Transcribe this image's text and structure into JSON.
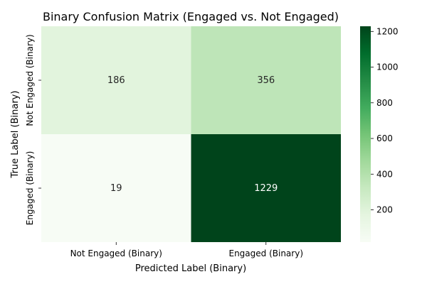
{
  "chart_data": {
    "type": "heatmap",
    "title": "Binary Confusion Matrix (Engaged vs. Not Engaged)",
    "xlabel": "Predicted Label (Binary)",
    "ylabel": "True Label (Binary)",
    "x_categories": [
      "Not Engaged (Binary)",
      "Engaged (Binary)"
    ],
    "y_categories": [
      "Not Engaged (Binary)",
      "Engaged (Binary)"
    ],
    "values": [
      [
        186,
        356
      ],
      [
        19,
        1229
      ]
    ],
    "colorbar": {
      "min": 19,
      "max": 1229,
      "ticks": [
        200,
        400,
        600,
        800,
        1000,
        1200
      ],
      "colormap": "Greens",
      "low_color": "#f7fcf5",
      "high_color": "#00441b"
    },
    "grid": false,
    "legend": "colorbar-right"
  }
}
